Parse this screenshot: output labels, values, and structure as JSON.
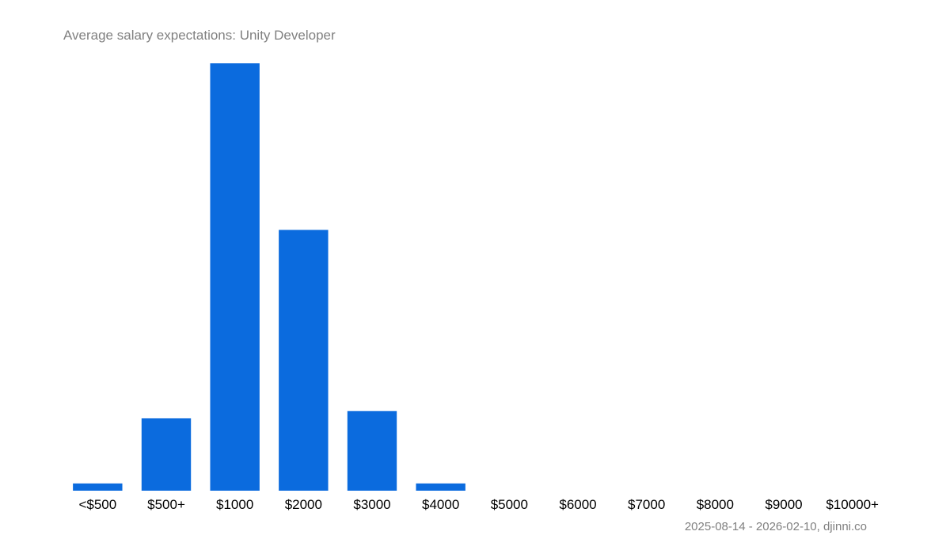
{
  "chart_data": {
    "type": "bar",
    "title": "Average salary expectations:  Unity Developer",
    "subtitle": "",
    "xlabel": "",
    "ylabel": "",
    "categories": [
      "<$500",
      "$500+",
      "$1000",
      "$2000",
      "$3000",
      "$4000",
      "$5000",
      "$6000",
      "$7000",
      "$8000",
      "$9000",
      "$10000+"
    ],
    "values": [
      1,
      10,
      59,
      36,
      11,
      1,
      0,
      0,
      0,
      0,
      0,
      0
    ],
    "ylim": [
      0,
      59
    ],
    "grid": false,
    "legend": "none",
    "source": "2025-08-14 - 2026-02-10, djinni.co",
    "colors": {
      "bar": "#0b6bde"
    }
  }
}
